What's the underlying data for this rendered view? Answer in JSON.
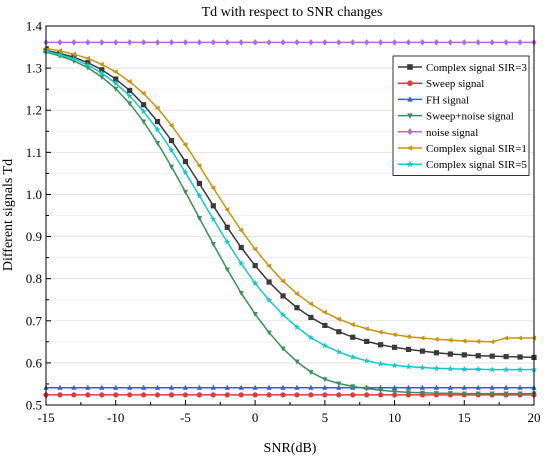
{
  "chart_data": {
    "type": "line",
    "title": "Td with respect to SNR changes",
    "xlabel": "SNR(dB)",
    "ylabel": "Different signals Td",
    "xlim": [
      -15,
      20
    ],
    "ylim": [
      0.5,
      1.4
    ],
    "xticks": [
      -15,
      -10,
      -5,
      0,
      5,
      10,
      15,
      20
    ],
    "xtick_labels": [
      "-15",
      "-10",
      "-5",
      "0",
      "5",
      "10",
      "15",
      "20"
    ],
    "yticks": [
      0.5,
      0.6,
      0.7,
      0.8,
      0.9,
      1.0,
      1.1,
      1.2,
      1.3,
      1.4
    ],
    "ytick_labels": [
      "0.5",
      "0.6",
      "0.7",
      "0.8",
      "0.9",
      "1.0",
      "1.1",
      "1.2",
      "1.3",
      "1.4"
    ],
    "grid": true,
    "legend_position": "top-right",
    "x": [
      -15,
      -14,
      -13,
      -12,
      -11,
      -10,
      -9,
      -8,
      -7,
      -6,
      -5,
      -4,
      -3,
      -2,
      -1,
      0,
      1,
      2,
      3,
      4,
      5,
      6,
      7,
      8,
      9,
      10,
      11,
      12,
      13,
      14,
      15,
      16,
      17,
      18,
      19,
      20
    ],
    "series": [
      {
        "name": "Complex signal SIR=3",
        "color": "#3a3a3a",
        "marker": "square",
        "values": [
          1.342,
          1.335,
          1.326,
          1.313,
          1.296,
          1.274,
          1.247,
          1.213,
          1.173,
          1.128,
          1.078,
          1.026,
          0.973,
          0.922,
          0.874,
          0.831,
          0.792,
          0.759,
          0.731,
          0.708,
          0.689,
          0.674,
          0.661,
          0.651,
          0.643,
          0.637,
          0.632,
          0.628,
          0.624,
          0.621,
          0.619,
          0.617,
          0.616,
          0.615,
          0.614,
          0.613
        ]
      },
      {
        "name": "Sweep signal",
        "color": "#e03a3a",
        "marker": "circle",
        "values": [
          0.524,
          0.524,
          0.524,
          0.524,
          0.524,
          0.524,
          0.524,
          0.524,
          0.524,
          0.524,
          0.524,
          0.524,
          0.524,
          0.524,
          0.524,
          0.524,
          0.524,
          0.524,
          0.524,
          0.524,
          0.524,
          0.524,
          0.524,
          0.524,
          0.524,
          0.524,
          0.524,
          0.524,
          0.524,
          0.524,
          0.524,
          0.524,
          0.524,
          0.524,
          0.524,
          0.524
        ]
      },
      {
        "name": "FH signal",
        "color": "#2f62d6",
        "marker": "triangle-up",
        "values": [
          0.541,
          0.541,
          0.541,
          0.541,
          0.541,
          0.541,
          0.541,
          0.541,
          0.541,
          0.541,
          0.541,
          0.541,
          0.541,
          0.541,
          0.541,
          0.541,
          0.541,
          0.541,
          0.541,
          0.541,
          0.541,
          0.541,
          0.541,
          0.541,
          0.541,
          0.541,
          0.541,
          0.541,
          0.541,
          0.541,
          0.541,
          0.541,
          0.541,
          0.541,
          0.541,
          0.541
        ]
      },
      {
        "name": "Sweep+noise signal",
        "color": "#3c8f58",
        "marker": "triangle-down",
        "values": [
          1.338,
          1.329,
          1.317,
          1.301,
          1.279,
          1.251,
          1.216,
          1.173,
          1.122,
          1.066,
          1.006,
          0.944,
          0.882,
          0.822,
          0.766,
          0.716,
          0.672,
          0.634,
          0.603,
          0.578,
          0.561,
          0.551,
          0.544,
          0.539,
          0.535,
          0.532,
          0.53,
          0.529,
          0.528,
          0.528,
          0.527,
          0.527,
          0.527,
          0.527,
          0.527,
          0.527
        ]
      },
      {
        "name": "noise signal",
        "color": "#b06be0",
        "marker": "diamond",
        "values": [
          1.361,
          1.361,
          1.361,
          1.361,
          1.361,
          1.361,
          1.361,
          1.361,
          1.361,
          1.361,
          1.361,
          1.361,
          1.361,
          1.361,
          1.361,
          1.361,
          1.361,
          1.361,
          1.361,
          1.361,
          1.361,
          1.361,
          1.361,
          1.361,
          1.361,
          1.361,
          1.361,
          1.361,
          1.361,
          1.361,
          1.361,
          1.361,
          1.361,
          1.361,
          1.361,
          1.361
        ]
      },
      {
        "name": "Complex signal SIR=1",
        "color": "#c7950e",
        "marker": "triangle-left",
        "values": [
          1.347,
          1.341,
          1.333,
          1.323,
          1.309,
          1.291,
          1.268,
          1.24,
          1.205,
          1.164,
          1.118,
          1.068,
          1.015,
          0.964,
          0.915,
          0.87,
          0.83,
          0.794,
          0.764,
          0.74,
          0.72,
          0.704,
          0.691,
          0.681,
          0.673,
          0.667,
          0.662,
          0.659,
          0.656,
          0.654,
          0.652,
          0.651,
          0.65,
          0.659,
          0.659,
          0.659
        ]
      },
      {
        "name": "Complex signal SIR=5",
        "color": "#15c7c7",
        "marker": "star",
        "values": [
          1.34,
          1.332,
          1.322,
          1.307,
          1.288,
          1.264,
          1.234,
          1.197,
          1.154,
          1.105,
          1.052,
          0.997,
          0.941,
          0.887,
          0.836,
          0.789,
          0.749,
          0.714,
          0.685,
          0.66,
          0.641,
          0.626,
          0.614,
          0.605,
          0.598,
          0.594,
          0.591,
          0.589,
          0.587,
          0.586,
          0.585,
          0.585,
          0.584,
          0.584,
          0.584,
          0.584
        ]
      }
    ]
  }
}
